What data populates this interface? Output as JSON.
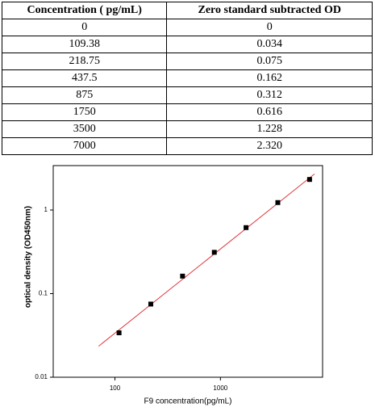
{
  "table": {
    "header": [
      "Concentration ( pg/mL)",
      "Zero standard subtracted OD"
    ],
    "rows": [
      [
        "0",
        "0"
      ],
      [
        "109.38",
        "0.034"
      ],
      [
        "218.75",
        "0.075"
      ],
      [
        "437.5",
        "0.162"
      ],
      [
        "875",
        "0.312"
      ],
      [
        "1750",
        "0.616"
      ],
      [
        "3500",
        "1.228"
      ],
      [
        "7000",
        "2.320"
      ]
    ]
  },
  "chart_data": {
    "type": "scatter",
    "x_label": "F9  concentration(pg/mL)",
    "y_label": "optical density (OD450nm)",
    "log_x": true,
    "log_y": true,
    "xlim": [
      26,
      9300
    ],
    "ylim": [
      0.01,
      3.4
    ],
    "xticks": [
      100,
      1000
    ],
    "yticks": [
      0.01,
      0.1,
      1
    ],
    "series": [
      {
        "color": "#000000",
        "x": [
          109.38,
          218.75,
          437.5,
          875,
          1750,
          3500,
          7000
        ],
        "values": [
          0.034,
          0.075,
          0.162,
          0.312,
          0.616,
          1.228,
          2.32
        ]
      }
    ],
    "fit_line": {
      "color": "#e0393e",
      "x": [
        70,
        7800
      ],
      "values": [
        0.0235,
        2.7
      ]
    }
  }
}
